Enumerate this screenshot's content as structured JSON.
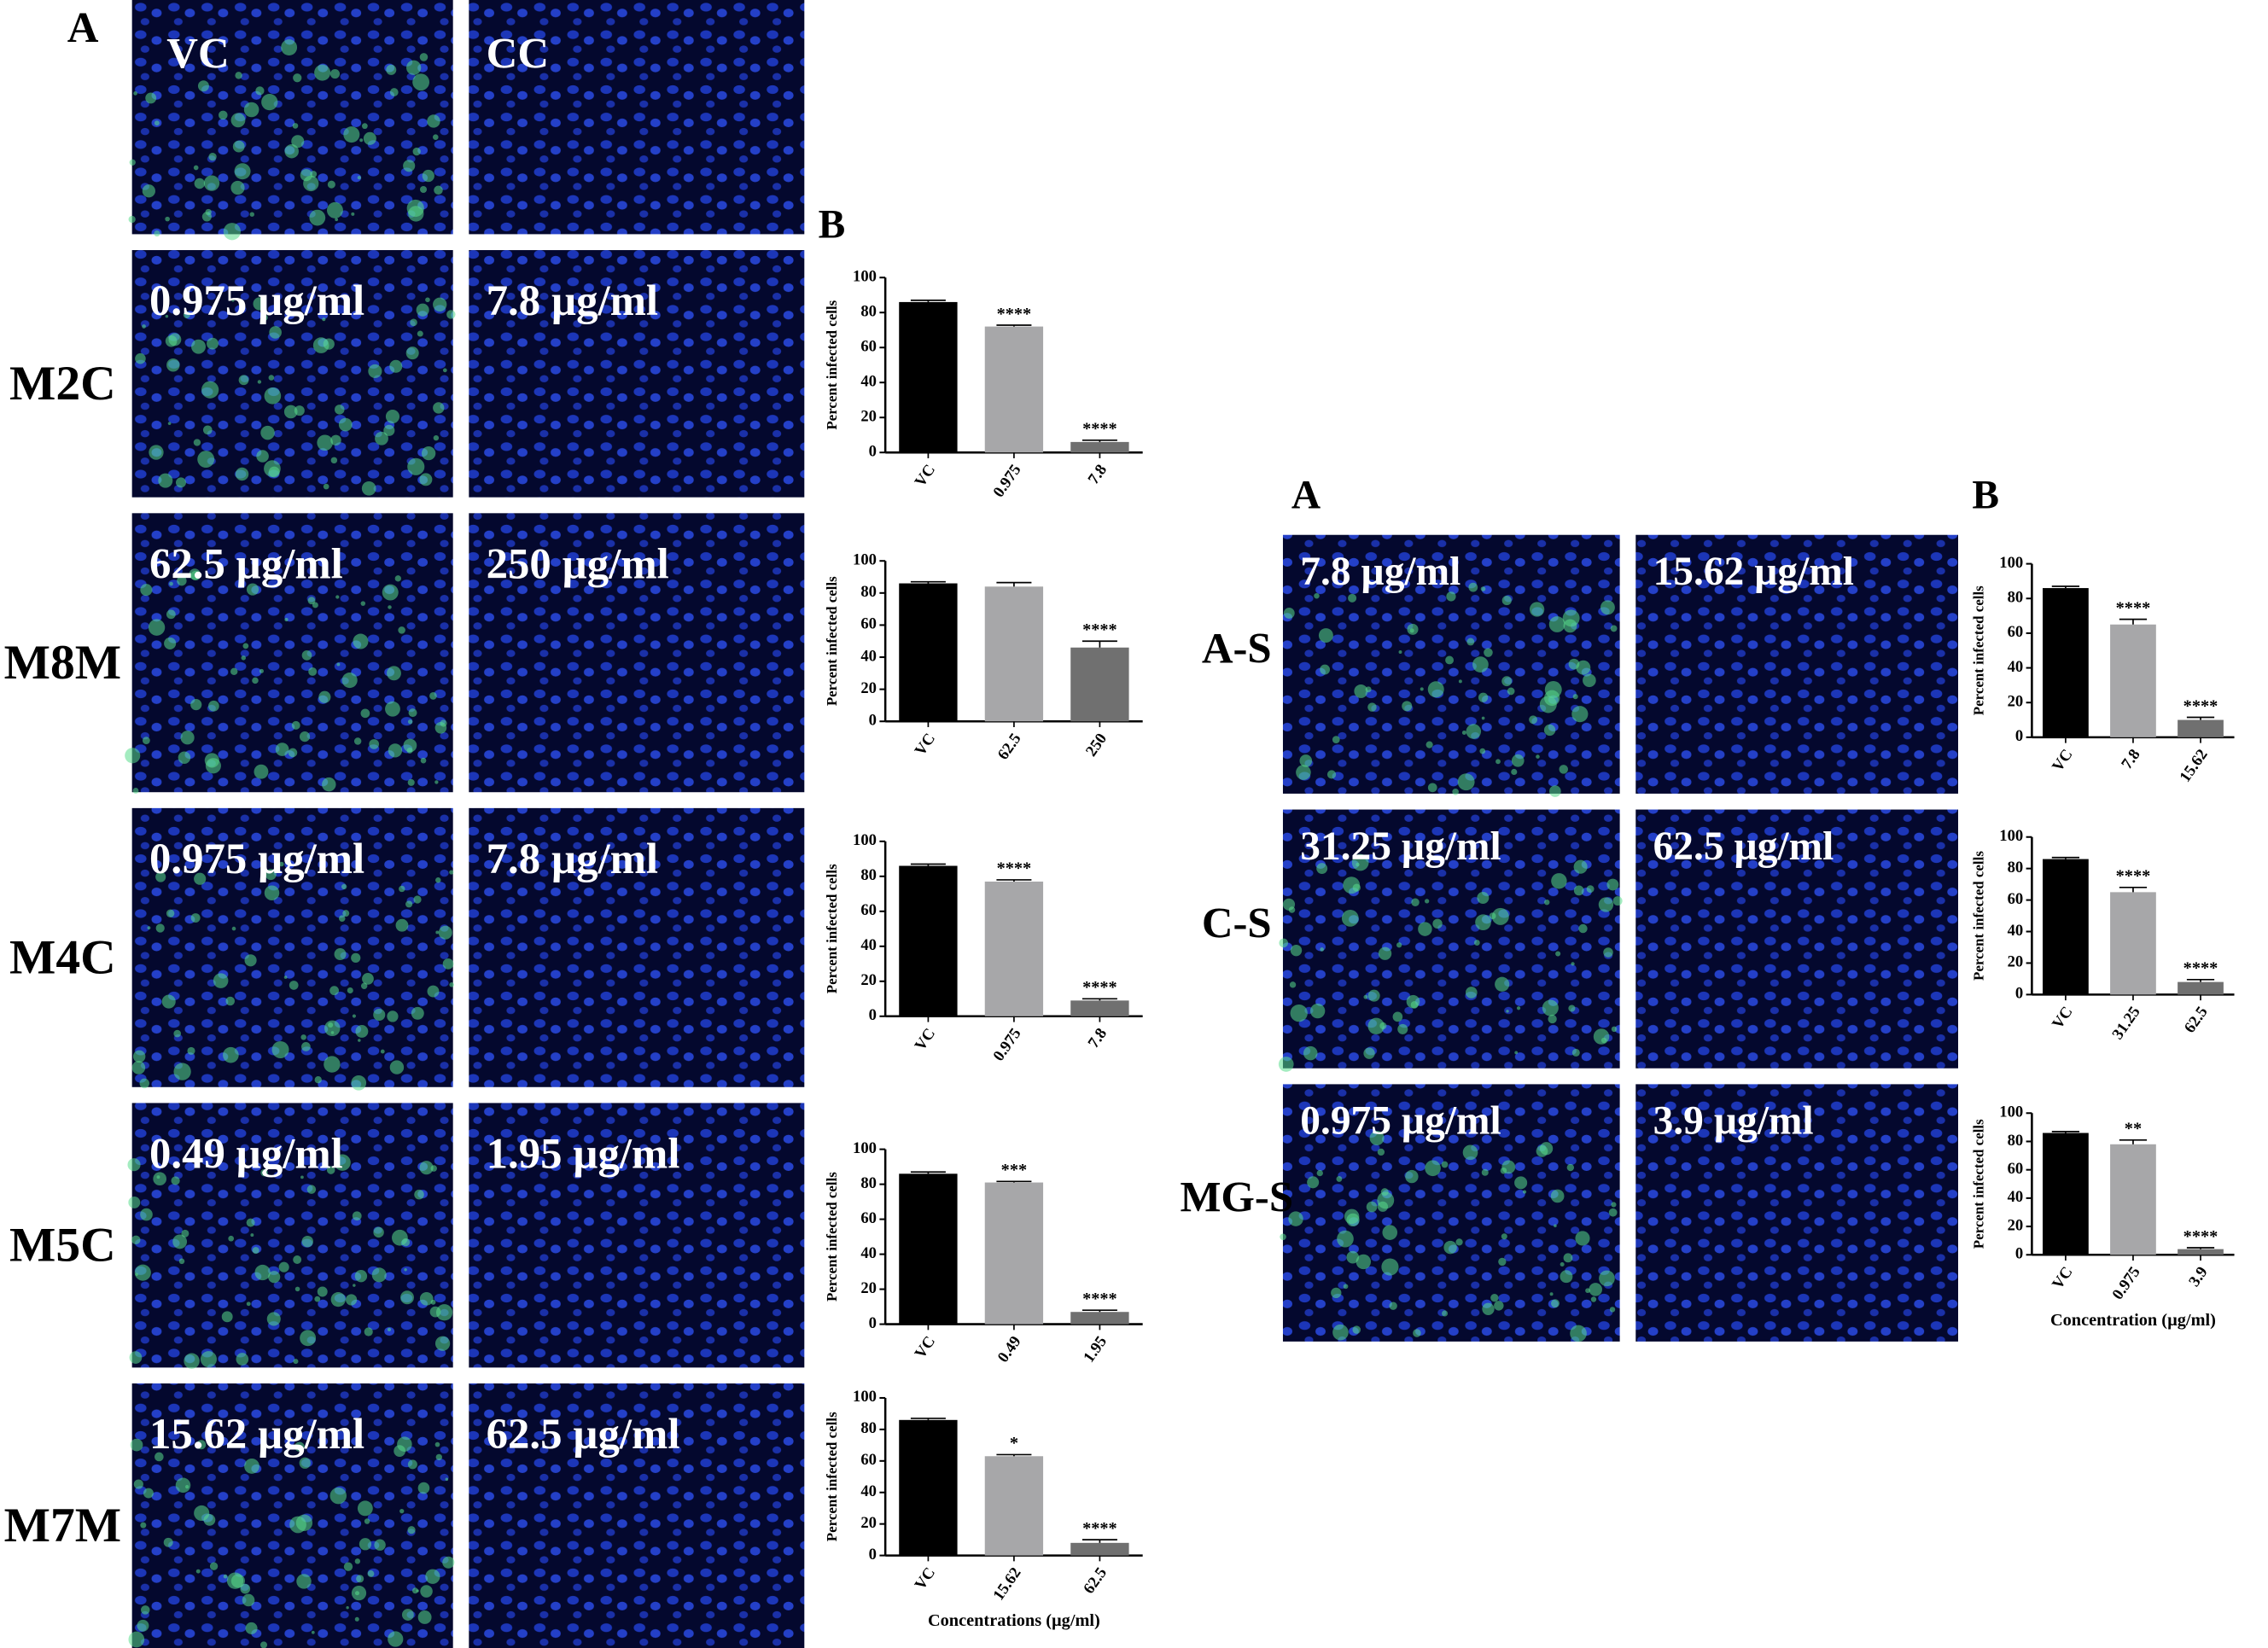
{
  "figure": {
    "left": {
      "panel_a": "A",
      "panel_b": "B",
      "top_labels": [
        "VC",
        "CC"
      ],
      "rows": [
        {
          "label": "M2C",
          "images": [
            "0.975 µg/ml",
            "7.8 µg/ml"
          ]
        },
        {
          "label": "M8M",
          "images": [
            "62.5 µg/ml",
            "250 µg/ml"
          ]
        },
        {
          "label": "M4C",
          "images": [
            "0.975 µg/ml",
            "7.8 µg/ml"
          ]
        },
        {
          "label": "M5C",
          "images": [
            "0.49 µg/ml",
            "1.95 µg/ml"
          ]
        },
        {
          "label": "M7M",
          "images": [
            "15.62 µg/ml",
            "62.5 µg/ml"
          ]
        }
      ]
    },
    "right": {
      "panel_a": "A",
      "panel_b": "B",
      "rows": [
        {
          "label": "A-S",
          "images": [
            "7.8 µg/ml",
            "15.62 µg/ml"
          ]
        },
        {
          "label": "C-S",
          "images": [
            "31.25 µg/ml",
            "62.5 µg/ml"
          ]
        },
        {
          "label": "MG-S",
          "images": [
            "0.975 µg/ml",
            "3.9 µg/ml"
          ]
        }
      ]
    }
  },
  "chart_data": [
    {
      "type": "bar",
      "y_label": "Percent infected cells",
      "categories": [
        "VC",
        "0.975",
        "7.8"
      ],
      "values": [
        86,
        72,
        6
      ],
      "errors": [
        1,
        0.8,
        1
      ],
      "annotations": [
        null,
        "****",
        "****"
      ],
      "colors": [
        "#000000",
        "#a7a7a9",
        "#707070"
      ],
      "ylim": [
        0,
        100
      ],
      "yticks": [
        0,
        20,
        40,
        60,
        80,
        100
      ]
    },
    {
      "type": "bar",
      "y_label": "Percent infected cells",
      "categories": [
        "VC",
        "62.5",
        "250"
      ],
      "values": [
        86,
        84,
        46
      ],
      "errors": [
        1,
        2.5,
        4
      ],
      "annotations": [
        null,
        null,
        "****"
      ],
      "colors": [
        "#000000",
        "#a7a7a9",
        "#707070"
      ],
      "ylim": [
        0,
        100
      ],
      "yticks": [
        0,
        20,
        40,
        60,
        80,
        100
      ]
    },
    {
      "type": "bar",
      "y_label": "Percent infected cells",
      "categories": [
        "VC",
        "0.975",
        "7.8"
      ],
      "values": [
        86,
        77,
        9
      ],
      "errors": [
        1,
        1,
        1
      ],
      "annotations": [
        null,
        "****",
        "****"
      ],
      "colors": [
        "#000000",
        "#a7a7a9",
        "#707070"
      ],
      "ylim": [
        0,
        100
      ],
      "yticks": [
        0,
        20,
        40,
        60,
        80,
        100
      ]
    },
    {
      "type": "bar",
      "y_label": "Percent infected cells",
      "categories": [
        "VC",
        "0.49",
        "1.95"
      ],
      "values": [
        86,
        81,
        7
      ],
      "errors": [
        1,
        0.6,
        1
      ],
      "annotations": [
        null,
        "***",
        "****"
      ],
      "colors": [
        "#000000",
        "#a7a7a9",
        "#707070"
      ],
      "ylim": [
        0,
        100
      ],
      "yticks": [
        0,
        20,
        40,
        60,
        80,
        100
      ]
    },
    {
      "type": "bar",
      "y_label": "Percent infected cells",
      "x_label": "Concentrations (µg/ml)",
      "categories": [
        "VC",
        "15.62",
        "62.5"
      ],
      "values": [
        86,
        63,
        8
      ],
      "errors": [
        1,
        1,
        2
      ],
      "annotations": [
        null,
        "*",
        "****"
      ],
      "colors": [
        "#000000",
        "#a7a7a9",
        "#707070"
      ],
      "ylim": [
        0,
        100
      ],
      "yticks": [
        0,
        20,
        40,
        60,
        80,
        100
      ]
    },
    {
      "type": "bar",
      "y_label": "Percent infected cells",
      "categories": [
        "VC",
        "7.8",
        "15.62"
      ],
      "values": [
        86,
        65,
        10
      ],
      "errors": [
        1,
        3,
        1.5
      ],
      "annotations": [
        null,
        "****",
        "****"
      ],
      "colors": [
        "#000000",
        "#a7a7a9",
        "#707070"
      ],
      "ylim": [
        0,
        100
      ],
      "yticks": [
        0,
        20,
        40,
        60,
        80,
        100
      ]
    },
    {
      "type": "bar",
      "y_label": "Percent infected cells",
      "categories": [
        "VC",
        "31.25",
        "62.5"
      ],
      "values": [
        86,
        65,
        8
      ],
      "errors": [
        1,
        3,
        1.5
      ],
      "annotations": [
        null,
        "****",
        "****"
      ],
      "colors": [
        "#000000",
        "#a7a7a9",
        "#707070"
      ],
      "ylim": [
        0,
        100
      ],
      "yticks": [
        0,
        20,
        40,
        60,
        80,
        100
      ]
    },
    {
      "type": "bar",
      "y_label": "Percent infected cells",
      "x_label": "Concentration (µg/ml)",
      "categories": [
        "VC",
        "0.975",
        "3.9"
      ],
      "values": [
        86,
        78,
        4
      ],
      "errors": [
        1,
        3,
        1
      ],
      "annotations": [
        null,
        "**",
        "****"
      ],
      "colors": [
        "#000000",
        "#a7a7a9",
        "#707070"
      ],
      "ylim": [
        0,
        100
      ],
      "yticks": [
        0,
        20,
        40,
        60,
        80,
        100
      ]
    }
  ]
}
